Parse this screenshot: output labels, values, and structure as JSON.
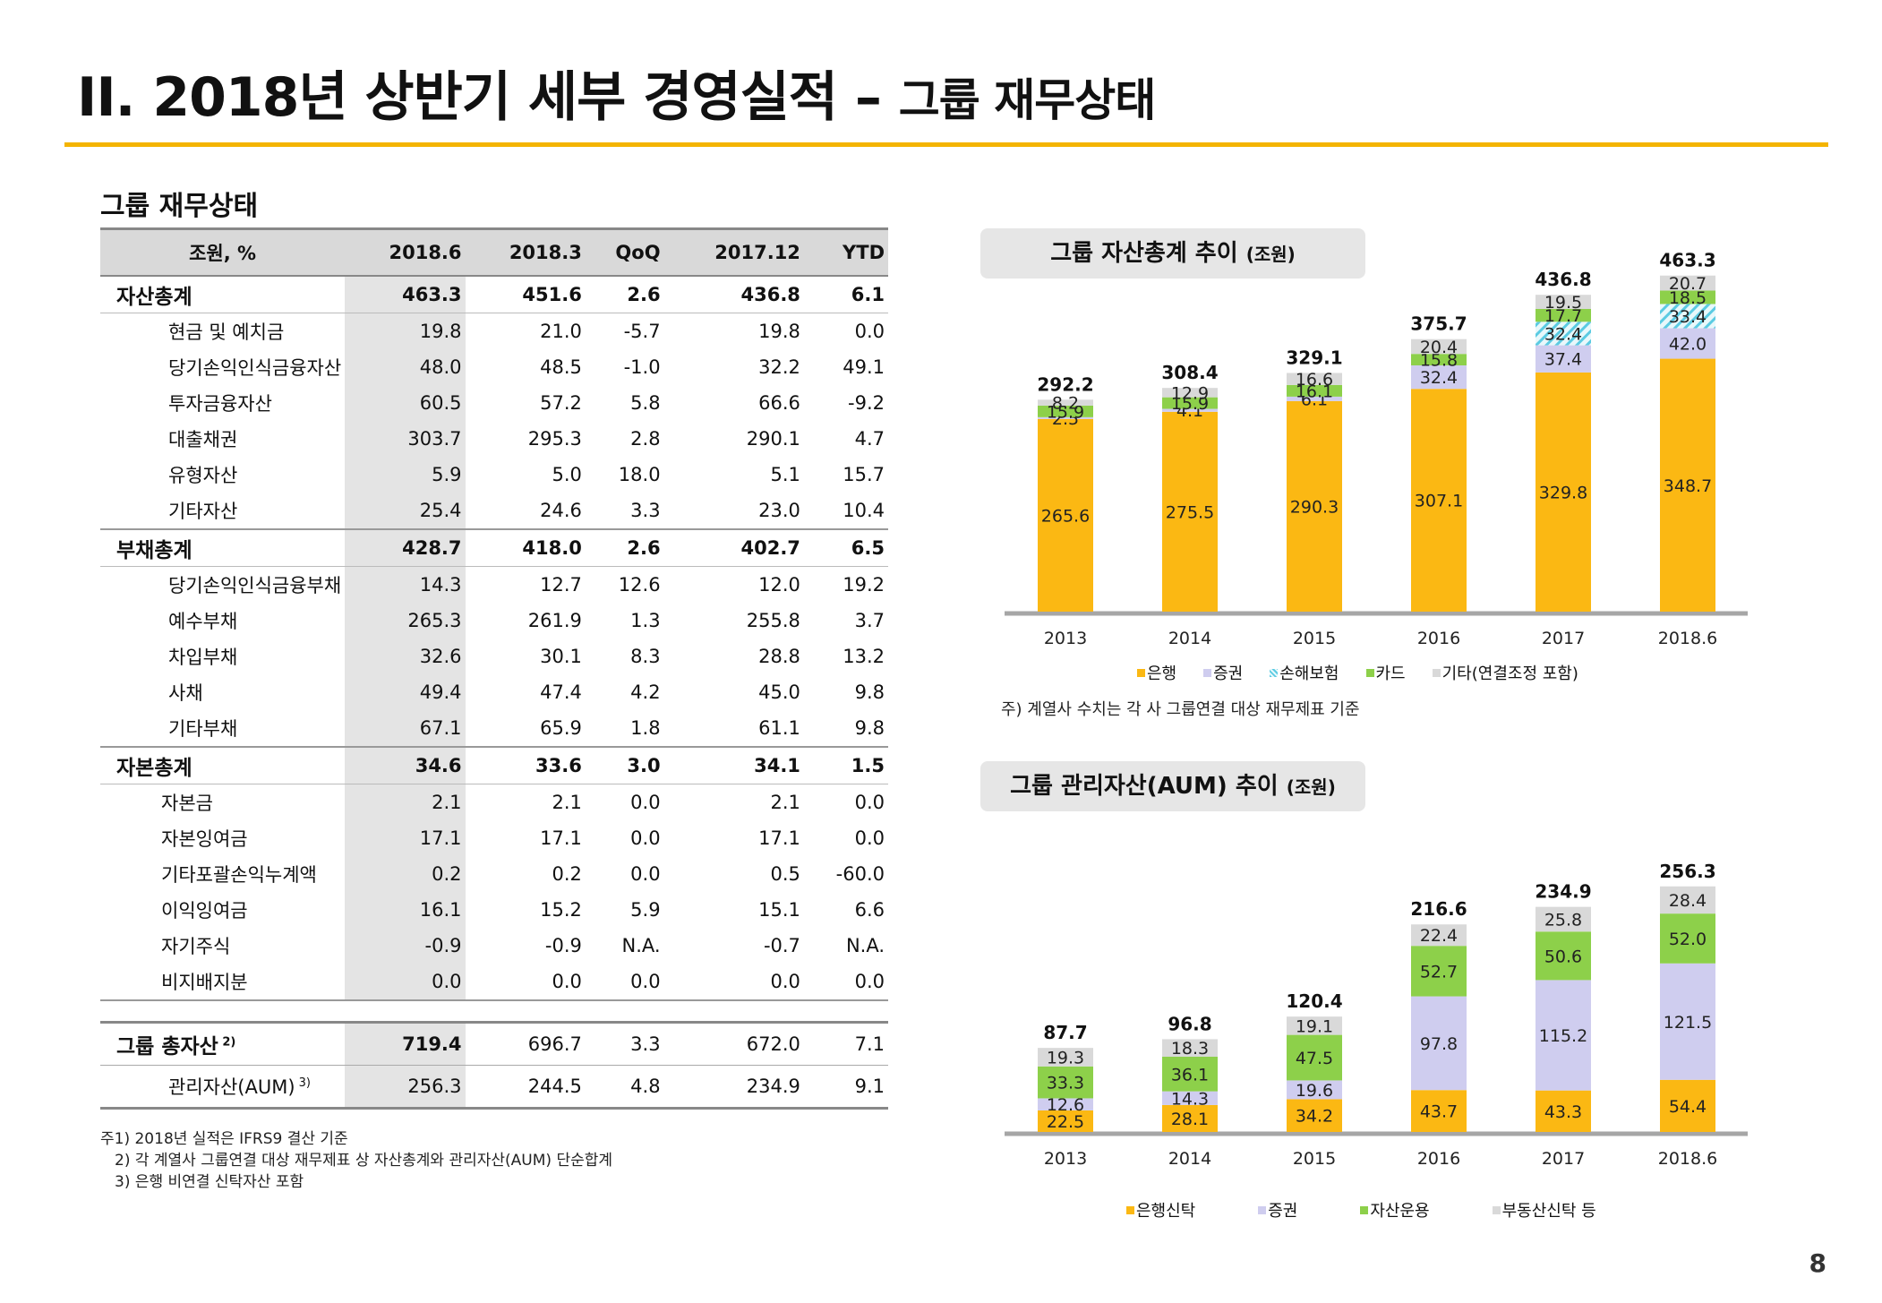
{
  "title": {
    "main": "II. 2018년 상반기 세부 경영실적 –",
    "sub": "그룹 재무상태"
  },
  "section_title": "그룹 재무상태",
  "table": {
    "headers": [
      "조원, %",
      "2018.6",
      "2018.3",
      "QoQ",
      "2017.12",
      "YTD"
    ],
    "groups": [
      {
        "label": "자산총계",
        "values": [
          "463.3",
          "451.6",
          "2.6",
          "436.8",
          "6.1"
        ],
        "rows": [
          {
            "label": "현금 및 예치금",
            "values": [
              "19.8",
              "21.0",
              "-5.7",
              "19.8",
              "0.0"
            ]
          },
          {
            "label": "당기손익인식금융자산",
            "values": [
              "48.0",
              "48.5",
              "-1.0",
              "32.2",
              "49.1"
            ]
          },
          {
            "label": "투자금융자산",
            "values": [
              "60.5",
              "57.2",
              "5.8",
              "66.6",
              "-9.2"
            ]
          },
          {
            "label": "대출채권",
            "values": [
              "303.7",
              "295.3",
              "2.8",
              "290.1",
              "4.7"
            ]
          },
          {
            "label": "유형자산",
            "values": [
              "5.9",
              "5.0",
              "18.0",
              "5.1",
              "15.7"
            ]
          },
          {
            "label": "기타자산",
            "values": [
              "25.4",
              "24.6",
              "3.3",
              "23.0",
              "10.4"
            ]
          }
        ]
      },
      {
        "label": "부채총계",
        "values": [
          "428.7",
          "418.0",
          "2.6",
          "402.7",
          "6.5"
        ],
        "rows": [
          {
            "label": "당기손익인식금융부채",
            "values": [
              "14.3",
              "12.7",
              "12.6",
              "12.0",
              "19.2"
            ]
          },
          {
            "label": "예수부채",
            "values": [
              "265.3",
              "261.9",
              "1.3",
              "255.8",
              "3.7"
            ]
          },
          {
            "label": "차입부채",
            "values": [
              "32.6",
              "30.1",
              "8.3",
              "28.8",
              "13.2"
            ]
          },
          {
            "label": "사채",
            "values": [
              "49.4",
              "47.4",
              "4.2",
              "45.0",
              "9.8"
            ]
          },
          {
            "label": "기타부채",
            "values": [
              "67.1",
              "65.9",
              "1.8",
              "61.1",
              "9.8"
            ]
          }
        ]
      },
      {
        "label": "자본총계",
        "values": [
          "34.6",
          "33.6",
          "3.0",
          "34.1",
          "1.5"
        ],
        "rows": [
          {
            "label": "자본금",
            "values": [
              "2.1",
              "2.1",
              "0.0",
              "2.1",
              "0.0"
            ]
          },
          {
            "label": "자본잉여금",
            "values": [
              "17.1",
              "17.1",
              "0.0",
              "17.1",
              "0.0"
            ]
          },
          {
            "label": "기타포괄손익누계액",
            "values": [
              "0.2",
              "0.2",
              "0.0",
              "0.5",
              "-60.0"
            ]
          },
          {
            "label": "이익잉여금",
            "values": [
              "16.1",
              "15.2",
              "5.9",
              "15.1",
              "6.6"
            ]
          },
          {
            "label": "자기주식",
            "values": [
              "-0.9",
              "-0.9",
              "N.A.",
              "-0.7",
              "N.A."
            ]
          },
          {
            "label": "비지배지분",
            "values": [
              "0.0",
              "0.0",
              "0.0",
              "0.0",
              "0.0"
            ]
          }
        ]
      }
    ],
    "total": {
      "label": "그룹 총자산",
      "sup": "2)",
      "values": [
        "719.4",
        "696.7",
        "3.3",
        "672.0",
        "7.1"
      ]
    },
    "aum": {
      "label": "관리자산(AUM)",
      "sup": "3)",
      "values": [
        "256.3",
        "244.5",
        "4.8",
        "234.9",
        "9.1"
      ]
    }
  },
  "footnotes": [
    "주1) 2018년 실적은 IFRS9 결산 기준",
    "2) 각 계열사 그룹연결 대상 재무제표 상 자산총계와 관리자산(AUM) 단순합계",
    "3) 은행 비연결 신탁자산 포함"
  ],
  "chart1_title": {
    "main": "그룹 자산총계 추이",
    "unit": "(조원)"
  },
  "chart1_note": "주) 계열사 수치는 각 사 그룹연결 대상 재무제표 기준",
  "chart2_title": {
    "main": "그룹 관리자산(AUM) 추이",
    "unit": "(조원)"
  },
  "page_number": "8",
  "colors": {
    "accent": "#F4B400",
    "bank": "#FBB813",
    "securities": "#CFCDEF",
    "insurance": "#5BCBE2",
    "card": "#8DD04A",
    "other": "#D9D9D9"
  },
  "chart_data": [
    {
      "type": "bar",
      "stacked": true,
      "title": "그룹 자산총계 추이 (조원)",
      "categories": [
        "2013",
        "2014",
        "2015",
        "2016",
        "2017",
        "2018.6"
      ],
      "totals": [
        "292.2",
        "308.4",
        "329.1",
        "375.7",
        "436.8",
        "463.3"
      ],
      "series": [
        {
          "name": "은행",
          "color": "#FBB813",
          "values": [
            265.6,
            275.5,
            290.3,
            307.1,
            329.8,
            348.7
          ]
        },
        {
          "name": "증권",
          "color": "#CFCDEF",
          "values": [
            2.5,
            4.1,
            6.1,
            32.4,
            37.4,
            42.0
          ],
          "labels": [
            "2.5",
            "4.1",
            "6.1",
            "32.4",
            "37.4",
            "42.0"
          ]
        },
        {
          "name": "손해보험",
          "color": "#5BCBE2",
          "pattern": "hatch",
          "values": [
            0,
            0,
            0,
            0,
            32.4,
            33.4
          ],
          "labels": [
            "",
            "",
            "",
            "",
            "32.4",
            "33.4"
          ]
        },
        {
          "name": "카드",
          "color": "#8DD04A",
          "values": [
            15.9,
            15.9,
            16.1,
            15.8,
            17.7,
            18.5
          ]
        },
        {
          "name": "기타(연결조정 포함)",
          "color": "#D9D9D9",
          "values": [
            8.2,
            12.9,
            16.6,
            20.4,
            19.5,
            20.7
          ]
        }
      ],
      "legend_position": "bottom"
    },
    {
      "type": "bar",
      "stacked": true,
      "title": "그룹 관리자산(AUM) 추이 (조원)",
      "categories": [
        "2013",
        "2014",
        "2015",
        "2016",
        "2017",
        "2018.6"
      ],
      "totals": [
        "87.7",
        "96.8",
        "120.4",
        "216.6",
        "234.9",
        "256.3"
      ],
      "series": [
        {
          "name": "은행신탁",
          "color": "#FBB813",
          "values": [
            22.5,
            28.1,
            34.2,
            43.7,
            43.3,
            54.4
          ]
        },
        {
          "name": "증권",
          "color": "#CFCDEF",
          "values": [
            12.6,
            14.3,
            19.6,
            97.8,
            115.2,
            121.5
          ]
        },
        {
          "name": "자산운용",
          "color": "#8DD04A",
          "values": [
            33.3,
            36.1,
            47.5,
            52.7,
            50.6,
            52.0
          ]
        },
        {
          "name": "부동산신탁 등",
          "color": "#D9D9D9",
          "values": [
            19.3,
            18.3,
            19.1,
            22.4,
            25.8,
            28.4
          ]
        }
      ],
      "legend_position": "bottom"
    }
  ]
}
